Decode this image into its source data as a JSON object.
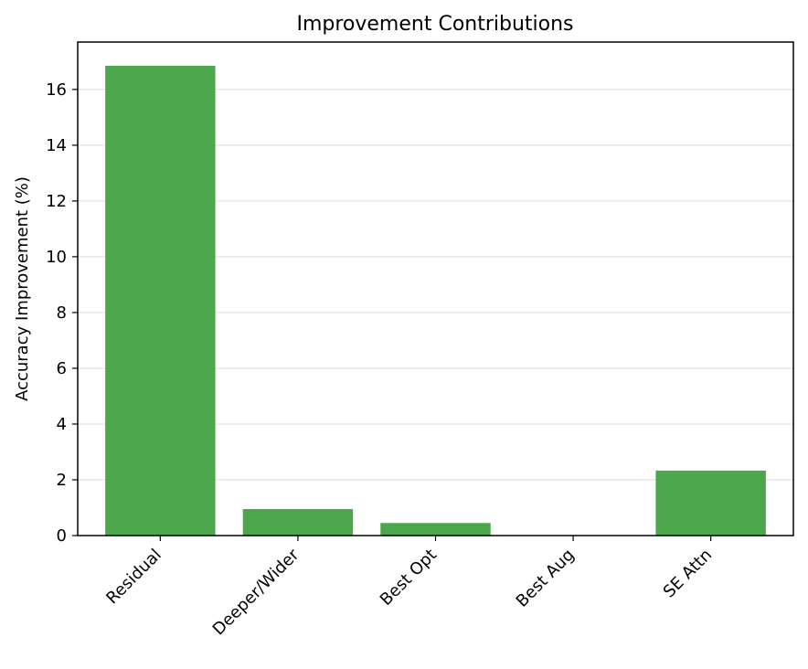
{
  "chart_data": {
    "type": "bar",
    "title": "Improvement Contributions",
    "xlabel": "",
    "ylabel": "Accuracy Improvement (%)",
    "categories": [
      "Residual",
      "Deeper/Wider",
      "Best Opt",
      "Best Aug",
      "SE Attn"
    ],
    "values": [
      16.85,
      0.95,
      0.45,
      0.0,
      2.33
    ],
    "ylim": [
      0,
      17.7
    ],
    "yticks": [
      "0",
      "2",
      "4",
      "6",
      "8",
      "10",
      "12",
      "14",
      "16"
    ],
    "grid": "y",
    "bar_color": "#4ca64c"
  }
}
